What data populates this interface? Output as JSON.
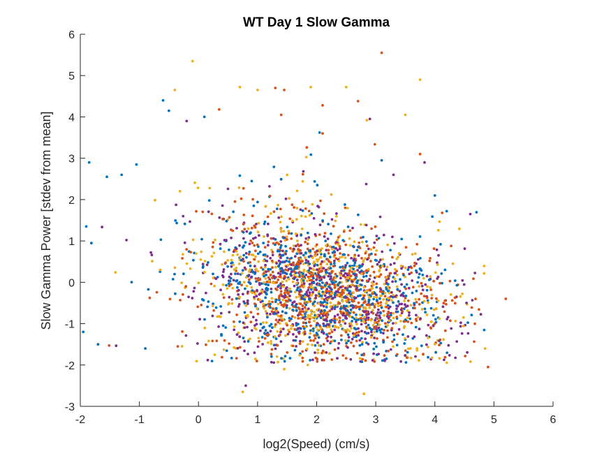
{
  "chart_data": {
    "type": "scatter",
    "title": "WT Day 1 Slow Gamma",
    "xlabel": "log2(Speed) (cm/s)",
    "ylabel": "Slow Gamma Power [stdev from mean]",
    "xlim": [
      -2,
      6
    ],
    "ylim": [
      -3,
      6
    ],
    "xticks": [
      "-2",
      "-1",
      "0",
      "1",
      "2",
      "3",
      "4",
      "5",
      "6"
    ],
    "yticks": [
      "-3",
      "-2",
      "-1",
      "0",
      "1",
      "2",
      "3",
      "4",
      "5",
      "6"
    ],
    "grid": false,
    "legend": "none",
    "series_colors": [
      "#0072BD",
      "#D95319",
      "#EDB120",
      "#7E2F8E"
    ],
    "cloud": {
      "x_center": 2.1,
      "x_spread": 1.45,
      "x_range": [
        -2,
        5.2
      ],
      "y_center": -0.25,
      "y_spread": 0.75,
      "points_per_series": 620
    },
    "outliers": [
      {
        "x": 3.1,
        "y": 5.55,
        "c": 1
      },
      {
        "x": -0.1,
        "y": 5.35,
        "c": 2
      },
      {
        "x": 3.75,
        "y": 4.9,
        "c": 2
      },
      {
        "x": -0.6,
        "y": 4.4,
        "c": 0
      },
      {
        "x": 0.1,
        "y": 4.0,
        "c": 0
      },
      {
        "x": -0.4,
        "y": 4.65,
        "c": 2
      },
      {
        "x": 0.7,
        "y": 4.72,
        "c": 2
      },
      {
        "x": 1.0,
        "y": 4.65,
        "c": 2
      },
      {
        "x": 1.3,
        "y": 4.7,
        "c": 1
      },
      {
        "x": 1.45,
        "y": 4.65,
        "c": 1
      },
      {
        "x": 1.9,
        "y": 4.72,
        "c": 2
      },
      {
        "x": 2.5,
        "y": 4.72,
        "c": 2
      },
      {
        "x": 2.7,
        "y": 4.38,
        "c": 1
      },
      {
        "x": 2.1,
        "y": 4.28,
        "c": 1
      },
      {
        "x": -0.5,
        "y": 4.15,
        "c": 0
      },
      {
        "x": 0.35,
        "y": 4.18,
        "c": 1
      },
      {
        "x": 1.4,
        "y": 4.05,
        "c": 1
      },
      {
        "x": 3.5,
        "y": 4.05,
        "c": 2
      },
      {
        "x": -0.2,
        "y": 3.9,
        "c": 3
      },
      {
        "x": 2.9,
        "y": 3.95,
        "c": 3
      },
      {
        "x": 2.85,
        "y": 3.92,
        "c": 2
      },
      {
        "x": 2.05,
        "y": 3.62,
        "c": 0
      },
      {
        "x": 2.1,
        "y": 3.6,
        "c": 1
      },
      {
        "x": -1.85,
        "y": 2.9,
        "c": 0
      },
      {
        "x": -1.05,
        "y": 2.85,
        "c": 0
      },
      {
        "x": -1.3,
        "y": 2.6,
        "c": 0
      },
      {
        "x": -1.55,
        "y": 2.55,
        "c": 0
      },
      {
        "x": 3.75,
        "y": 3.1,
        "c": 1
      },
      {
        "x": 4.6,
        "y": 1.65,
        "c": 3
      },
      {
        "x": 5.2,
        "y": -0.4,
        "c": 1
      },
      {
        "x": 4.9,
        "y": -2.05,
        "c": 1
      },
      {
        "x": 0.8,
        "y": -2.5,
        "c": 3
      },
      {
        "x": 0.75,
        "y": -2.65,
        "c": 2
      },
      {
        "x": 2.8,
        "y": -2.7,
        "c": 2
      },
      {
        "x": 1.45,
        "y": -2.1,
        "c": 2
      },
      {
        "x": 1.85,
        "y": -2.0,
        "c": 2
      },
      {
        "x": -1.7,
        "y": -1.5,
        "c": 0
      },
      {
        "x": -0.35,
        "y": -1.55,
        "c": 1
      },
      {
        "x": -0.9,
        "y": -1.6,
        "c": 0
      },
      {
        "x": 4.85,
        "y": -1.6,
        "c": 2
      },
      {
        "x": 3.1,
        "y": 2.95,
        "c": 0
      },
      {
        "x": 3.3,
        "y": 2.6,
        "c": 3
      },
      {
        "x": 4.0,
        "y": 2.1,
        "c": 0
      },
      {
        "x": -1.9,
        "y": 1.35,
        "c": 0
      },
      {
        "x": -1.95,
        "y": -1.2,
        "c": 0
      }
    ]
  }
}
